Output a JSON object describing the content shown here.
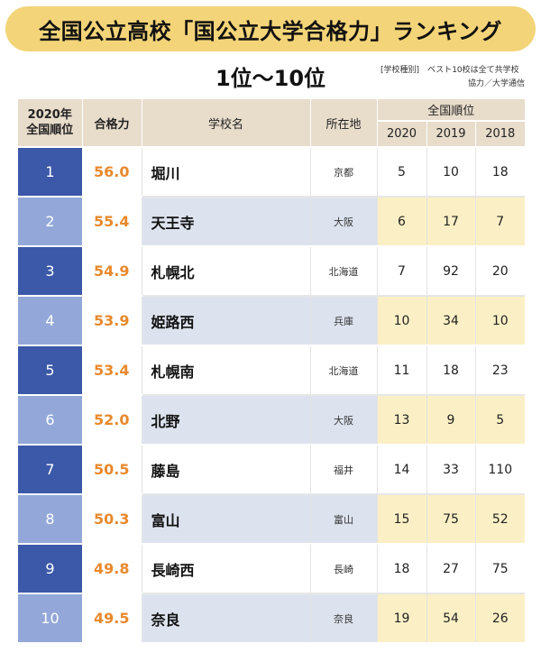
{
  "title": "全国公立高校「国公立大学合格力」ランキング",
  "subtitle": "1位〜10位",
  "note": {
    "line1": "[学校種別]　ベスト10校は全て共学校",
    "line2": "協力／大学通信"
  },
  "table": {
    "headers": {
      "rank_line1": "2020年",
      "rank_line2": "全国順位",
      "score": "合格力",
      "name": "学校名",
      "location": "所在地",
      "national_rank": "全国順位",
      "years": [
        "2020",
        "2019",
        "2018"
      ]
    },
    "rows": [
      {
        "rank": "1",
        "score": "56.0",
        "name": "堀川",
        "location": "京都",
        "r2020": "5",
        "r2019": "10",
        "r2018": "18"
      },
      {
        "rank": "2",
        "score": "55.4",
        "name": "天王寺",
        "location": "大阪",
        "r2020": "6",
        "r2019": "17",
        "r2018": "7"
      },
      {
        "rank": "3",
        "score": "54.9",
        "name": "札幌北",
        "location": "北海道",
        "r2020": "7",
        "r2019": "92",
        "r2018": "20"
      },
      {
        "rank": "4",
        "score": "53.9",
        "name": "姫路西",
        "location": "兵庫",
        "r2020": "10",
        "r2019": "34",
        "r2018": "10"
      },
      {
        "rank": "5",
        "score": "53.4",
        "name": "札幌南",
        "location": "北海道",
        "r2020": "11",
        "r2019": "18",
        "r2018": "23"
      },
      {
        "rank": "6",
        "score": "52.0",
        "name": "北野",
        "location": "大阪",
        "r2020": "13",
        "r2019": "9",
        "r2018": "5"
      },
      {
        "rank": "7",
        "score": "50.5",
        "name": "藤島",
        "location": "福井",
        "r2020": "14",
        "r2019": "33",
        "r2018": "110"
      },
      {
        "rank": "8",
        "score": "50.3",
        "name": "富山",
        "location": "富山",
        "r2020": "15",
        "r2019": "75",
        "r2018": "52"
      },
      {
        "rank": "9",
        "score": "49.8",
        "name": "長崎西",
        "location": "長崎",
        "r2020": "18",
        "r2019": "27",
        "r2018": "75"
      },
      {
        "rank": "10",
        "score": "49.5",
        "name": "奈良",
        "location": "奈良",
        "r2020": "19",
        "r2019": "54",
        "r2018": "26"
      }
    ]
  },
  "colors": {
    "banner": "#f3d478",
    "rank_dark": "#3c58a8",
    "rank_light": "#93a8d8",
    "score_text": "#e8892c",
    "header_bg": "#e8dccb",
    "row_tint": "#dde3ee",
    "year_tint": "#fbf0c5"
  }
}
